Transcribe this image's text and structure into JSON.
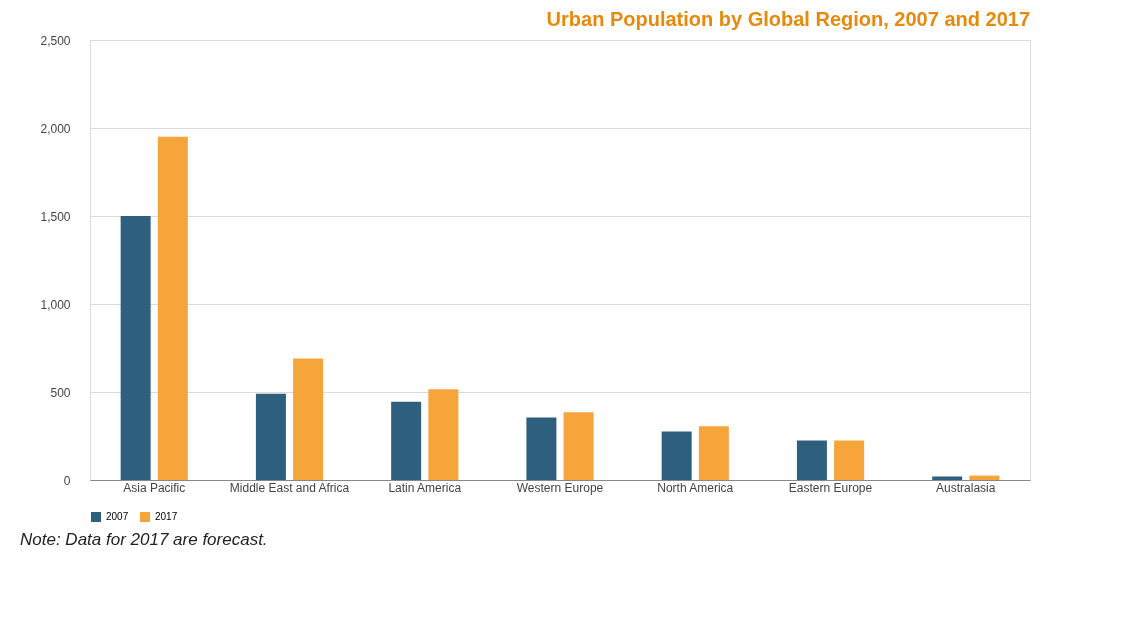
{
  "chart_data": {
    "type": "bar",
    "title": "Urban Population by Global Region, 2007 and 2017",
    "categories": [
      "Asia Pacific",
      "Middle East and Africa",
      "Latin America",
      "Western Europe",
      "North America",
      "Eastern Europe",
      "Australasia"
    ],
    "series": [
      {
        "name": "2007",
        "color": "#2e5f7f",
        "values": [
          1500,
          490,
          445,
          355,
          275,
          225,
          20
        ]
      },
      {
        "name": "2017",
        "color": "#f5a53a",
        "values": [
          1950,
          690,
          515,
          385,
          305,
          225,
          25
        ]
      }
    ],
    "ylim": [
      0,
      2500
    ],
    "yticks": [
      0,
      {
        "value": 500,
        "label": "500"
      },
      {
        "value": 1000,
        "label": "1,000"
      },
      {
        "value": 1500,
        "label": "1,500"
      },
      {
        "value": 2000,
        "label": "2,000"
      },
      {
        "value": 2500,
        "label": "2,500"
      }
    ],
    "grid": "y",
    "legend": "bottom",
    "annotations": [
      "Note: Data for 2017 are forecast."
    ]
  }
}
